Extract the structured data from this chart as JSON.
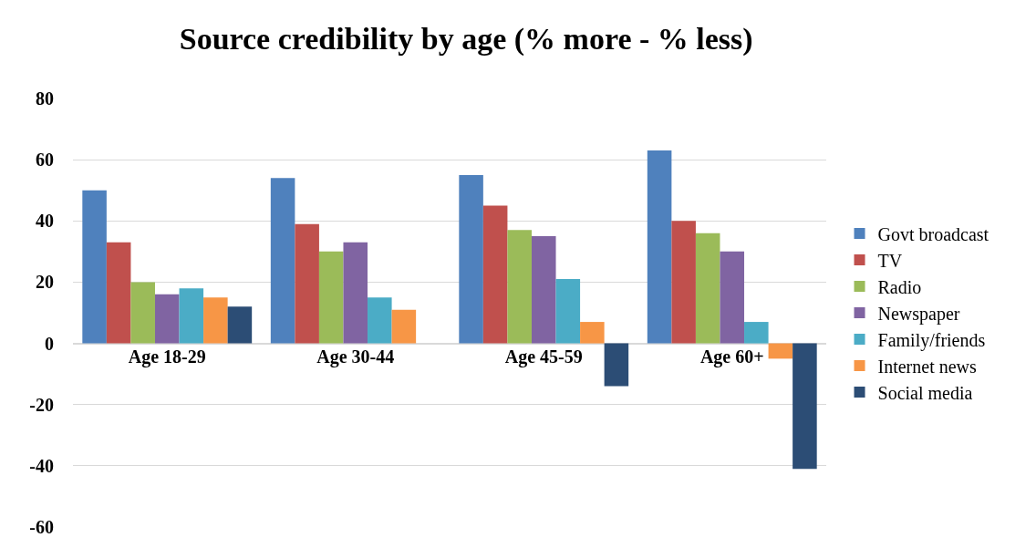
{
  "chart_data": {
    "type": "bar",
    "title": "Source credibility by age (% more - % less)",
    "categories": [
      "Age 18-29",
      "Age 30-44",
      "Age 45-59",
      "Age 60+"
    ],
    "series": [
      {
        "name": "Govt broadcast",
        "color": "#4f81bd",
        "values": [
          50,
          54,
          55,
          63
        ]
      },
      {
        "name": "TV",
        "color": "#c0504d",
        "values": [
          33,
          39,
          45,
          40
        ]
      },
      {
        "name": "Radio",
        "color": "#9bbb59",
        "values": [
          20,
          30,
          37,
          36
        ]
      },
      {
        "name": "Newspaper",
        "color": "#8064a2",
        "values": [
          16,
          33,
          35,
          30
        ]
      },
      {
        "name": "Family/friends",
        "color": "#4bacc6",
        "values": [
          18,
          15,
          21,
          7
        ]
      },
      {
        "name": "Internet news",
        "color": "#f79646",
        "values": [
          15,
          11,
          7,
          -5
        ]
      },
      {
        "name": "Social media",
        "color": "#2c4d75",
        "values": [
          12,
          0,
          -14,
          -41
        ]
      }
    ],
    "ylim": [
      -60,
      80
    ],
    "yticks": [
      -60,
      -40,
      -20,
      0,
      20,
      40,
      60,
      80
    ],
    "grid": "y",
    "legend": "right"
  }
}
